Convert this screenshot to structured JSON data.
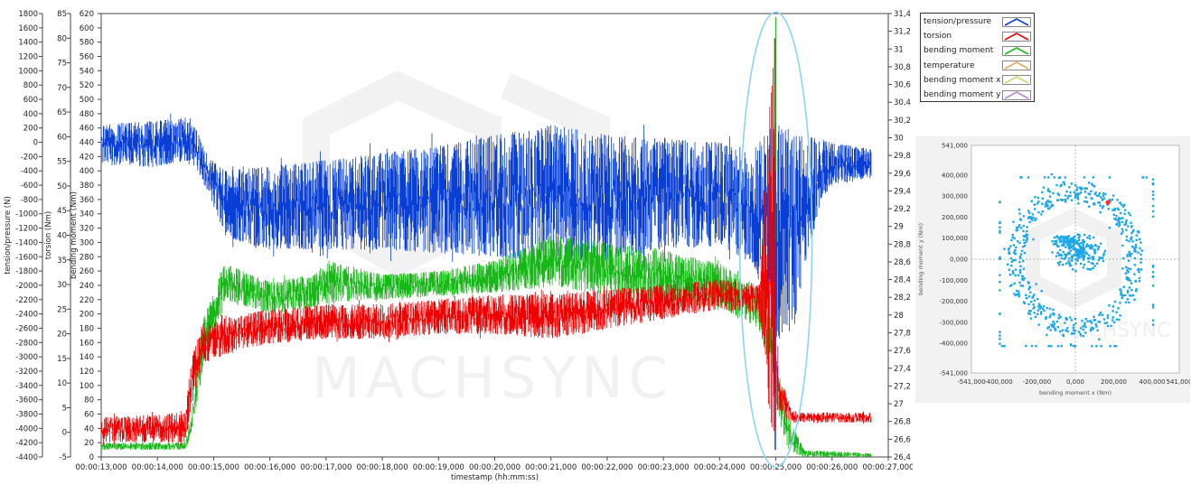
{
  "chart_data": [
    {
      "type": "line",
      "xlabel": "timestamp (hh:mm:ss)",
      "x_ticks": [
        "00:00:13,000",
        "00:00:14,000",
        "00:00:15,000",
        "00:00:16,000",
        "00:00:17,000",
        "00:00:18,000",
        "00:00:19,000",
        "00:00:20,000",
        "00:00:21,000",
        "00:00:22,000",
        "00:00:23,000",
        "00:00:24,000",
        "00:00:25,000",
        "00:00:26,000",
        "00:00:27,000"
      ],
      "x_range_seconds": [
        13.0,
        27.0
      ],
      "axes": [
        {
          "label": "tension/pressure (N)",
          "range": [
            -4400,
            1800
          ],
          "ticks": [
            "1800",
            "1600",
            "1400",
            "1200",
            "1000",
            "800",
            "600",
            "400",
            "200",
            "0",
            "-200",
            "-400",
            "-600",
            "-800",
            "-1000",
            "-1200",
            "-1400",
            "-1600",
            "-1800",
            "-2000",
            "-2200",
            "-2400",
            "-2600",
            "-2800",
            "-3000",
            "-3200",
            "-3400",
            "-3600",
            "-3800",
            "-4000",
            "-4200",
            "-4400"
          ]
        },
        {
          "label": "torsion (Nm)",
          "range": [
            -5,
            85
          ],
          "ticks": [
            "85",
            "80",
            "75",
            "70",
            "65",
            "60",
            "55",
            "50",
            "45",
            "40",
            "35",
            "30",
            "25",
            "20",
            "15",
            "10",
            "5",
            "0",
            "-5"
          ]
        },
        {
          "label": "bending moment (Nm)",
          "range": [
            0,
            620
          ],
          "ticks": [
            "620",
            "600",
            "580",
            "560",
            "540",
            "520",
            "500",
            "480",
            "460",
            "440",
            "420",
            "400",
            "380",
            "360",
            "340",
            "320",
            "300",
            "280",
            "260",
            "240",
            "220",
            "200",
            "180",
            "160",
            "140",
            "120",
            "100",
            "80",
            "60",
            "40",
            "20",
            "0"
          ]
        },
        {
          "label": "",
          "range": [
            26.4,
            31.4
          ],
          "ticks": [
            "31,4",
            "31,2",
            "31",
            "30,8",
            "30,6",
            "30,4",
            "30,2",
            "30",
            "29,8",
            "29,6",
            "29,4",
            "29,2",
            "29",
            "28,8",
            "28,6",
            "28,4",
            "28,2",
            "28",
            "27,8",
            "27,6",
            "27,4",
            "27,2",
            "27",
            "26,8",
            "26,6",
            "26,4"
          ]
        }
      ],
      "series": [
        {
          "name": "tension/pressure",
          "color": "#0a3fd6",
          "unit_axis": 0,
          "x": [
            13.0,
            13.9,
            14.6,
            14.9,
            15.2,
            15.8,
            17,
            18,
            19,
            20,
            20.8,
            21,
            22,
            23,
            24,
            24.6,
            25.0,
            25.3,
            25.8,
            26,
            26.7
          ],
          "y_low": [
            -300,
            -350,
            -250,
            -700,
            -1300,
            -1500,
            -1500,
            -1500,
            -1550,
            -1600,
            -1700,
            -1650,
            -1650,
            -1500,
            -1450,
            -1700,
            -2800,
            -2600,
            -800,
            -600,
            -500
          ],
          "y_high": [
            250,
            300,
            350,
            -200,
            -400,
            -350,
            -250,
            -150,
            -50,
            100,
            200,
            250,
            100,
            50,
            0,
            -100,
            300,
            100,
            50,
            0,
            -100
          ]
        },
        {
          "name": "torsion",
          "color": "#f00000",
          "unit_axis": 1,
          "x": [
            13.0,
            14.5,
            14.6,
            14.8,
            15.5,
            16,
            17,
            18,
            19,
            20,
            21,
            22,
            23,
            24,
            24.7,
            24.95,
            25.05,
            25.15,
            25.3,
            26.0,
            26.7
          ],
          "y_low": [
            -2,
            -2,
            5,
            14,
            17,
            18,
            19,
            19,
            20,
            20,
            19,
            21,
            23,
            25,
            24,
            -3,
            5,
            3,
            2,
            2,
            2
          ],
          "y_high": [
            3,
            4,
            15,
            22,
            24,
            25,
            26,
            26,
            27,
            28,
            28,
            29,
            30,
            31,
            30,
            78,
            10,
            9,
            4,
            4,
            4
          ]
        },
        {
          "name": "bending moment",
          "color": "#18b818",
          "unit_axis": 2,
          "x": [
            13.0,
            14.5,
            14.6,
            14.8,
            15.2,
            16,
            16.8,
            17,
            18,
            19,
            20,
            20.8,
            21,
            22,
            23,
            24,
            24.7,
            24.9,
            25.05,
            25.2,
            25.5,
            26.7
          ],
          "y_low": [
            10,
            10,
            30,
            120,
            220,
            200,
            210,
            215,
            220,
            225,
            230,
            235,
            240,
            225,
            215,
            210,
            180,
            120,
            60,
            10,
            0,
            0
          ],
          "y_high": [
            20,
            20,
            60,
            190,
            270,
            245,
            255,
            275,
            255,
            260,
            275,
            300,
            310,
            300,
            290,
            270,
            240,
            230,
            120,
            60,
            10,
            5
          ]
        },
        {
          "name": "temperature",
          "color": "#e5a85a",
          "unit_axis": 3,
          "x": [],
          "y": []
        },
        {
          "name": "bending moment x",
          "color": "#c8d870",
          "unit_axis": 3,
          "x": [],
          "y": []
        },
        {
          "name": "bending moment y",
          "color": "#b784e0",
          "unit_axis": 3,
          "x": [],
          "y": []
        }
      ],
      "annotation": "ellipse highlighting the spike near 00:00:25,000",
      "legend_position": "top-right",
      "grid": false,
      "watermark": "MACHSYNC"
    },
    {
      "type": "scatter",
      "title": "",
      "xlabel": "bending moment x (Nm)",
      "ylabel": "bending moment y (Nm)",
      "xlim": [
        -541000,
        541000
      ],
      "ylim": [
        -541000,
        541000
      ],
      "x_ticks": [
        "-541,000",
        "-400,000",
        "-200,000",
        "0,000",
        "200,000",
        "400,000",
        "541,000"
      ],
      "y_ticks": [
        "541,000",
        "400,000",
        "300,000",
        "200,000",
        "100,000",
        "0,000",
        "-100,000",
        "-200,000",
        "-300,000",
        "-400,000",
        "-541,000"
      ],
      "point_color": "#1ea7e8",
      "highlight_point": {
        "x": 170000,
        "y": 270000,
        "color": "#ff2a2a"
      },
      "ring_radius": 310000,
      "border_band": 405000,
      "grid": true,
      "watermark": "MACHSYNC"
    }
  ]
}
